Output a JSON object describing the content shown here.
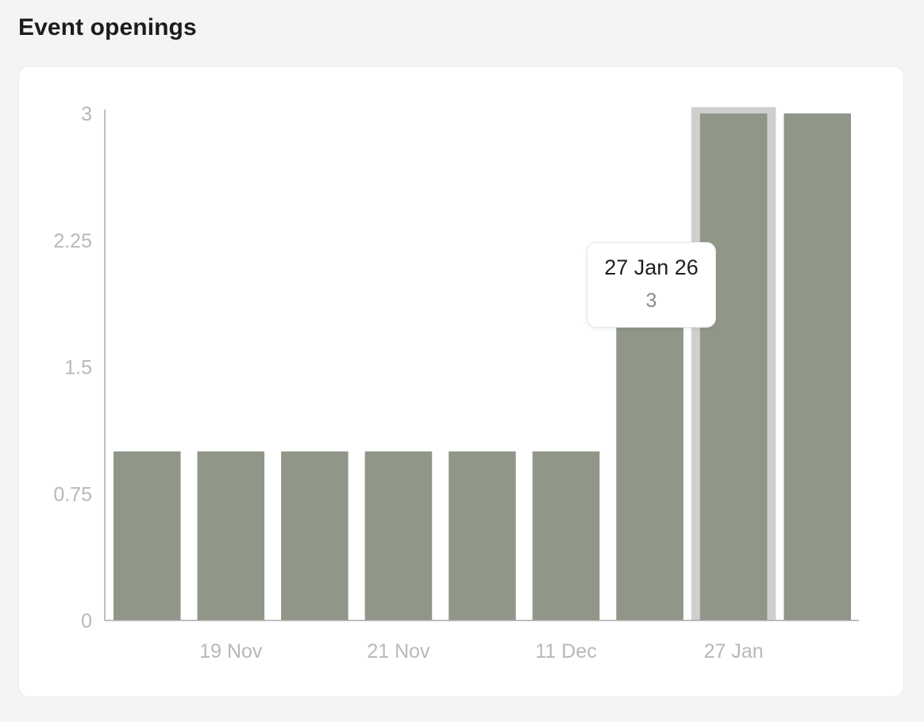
{
  "header": {
    "title": "Event openings"
  },
  "colors": {
    "bar": "#909789",
    "hover_band": "#cfcfcf",
    "axis": "#a9a9a9",
    "tick_text": "#b8b8b8"
  },
  "tooltip": {
    "title": "27 Jan 26",
    "value": "3"
  },
  "chart_data": {
    "type": "bar",
    "title": "Event openings",
    "values": [
      1,
      1,
      1,
      1,
      1,
      1,
      2,
      3,
      3
    ],
    "x_tick_labels": [
      "19 Nov",
      "21 Nov",
      "11 Dec",
      "27 Jan"
    ],
    "y_ticks": [
      "0",
      "0.75",
      "1.5",
      "2.25",
      "3"
    ],
    "ylim": [
      0,
      3
    ],
    "hovered_index": 7,
    "grid": false,
    "legend": "none"
  }
}
